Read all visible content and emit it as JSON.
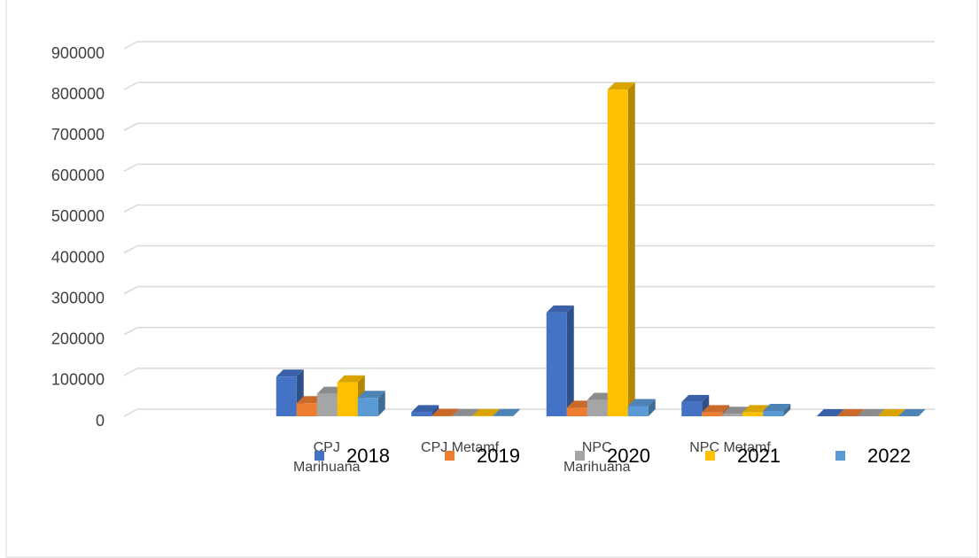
{
  "chart_data": {
    "type": "bar3d",
    "categories": [
      null,
      "CPJ Marihuana",
      "CPJ Metamf.",
      "NPC Marihuana",
      "NPC Metamf.",
      null
    ],
    "series": [
      {
        "name": "2018",
        "color": "#4472c4",
        "values": [
          null,
          97000,
          10000,
          254000,
          35000,
          0
        ]
      },
      {
        "name": "2019",
        "color": "#ed7d31",
        "values": [
          null,
          32000,
          1000,
          21000,
          10000,
          0
        ]
      },
      {
        "name": "2020",
        "color": "#a5a5a5",
        "values": [
          null,
          55000,
          500,
          40000,
          6000,
          0
        ]
      },
      {
        "name": "2021",
        "color": "#ffc000",
        "values": [
          null,
          83000,
          500,
          800000,
          10000,
          0
        ]
      },
      {
        "name": "2022",
        "color": "#5b9bd5",
        "values": [
          null,
          45000,
          500,
          25000,
          13000,
          0
        ]
      }
    ],
    "ylim": [
      0,
      900000
    ],
    "yticks": [
      0,
      100000,
      200000,
      300000,
      400000,
      500000,
      600000,
      700000,
      800000,
      900000
    ],
    "grid": true,
    "legend": "bottom"
  }
}
